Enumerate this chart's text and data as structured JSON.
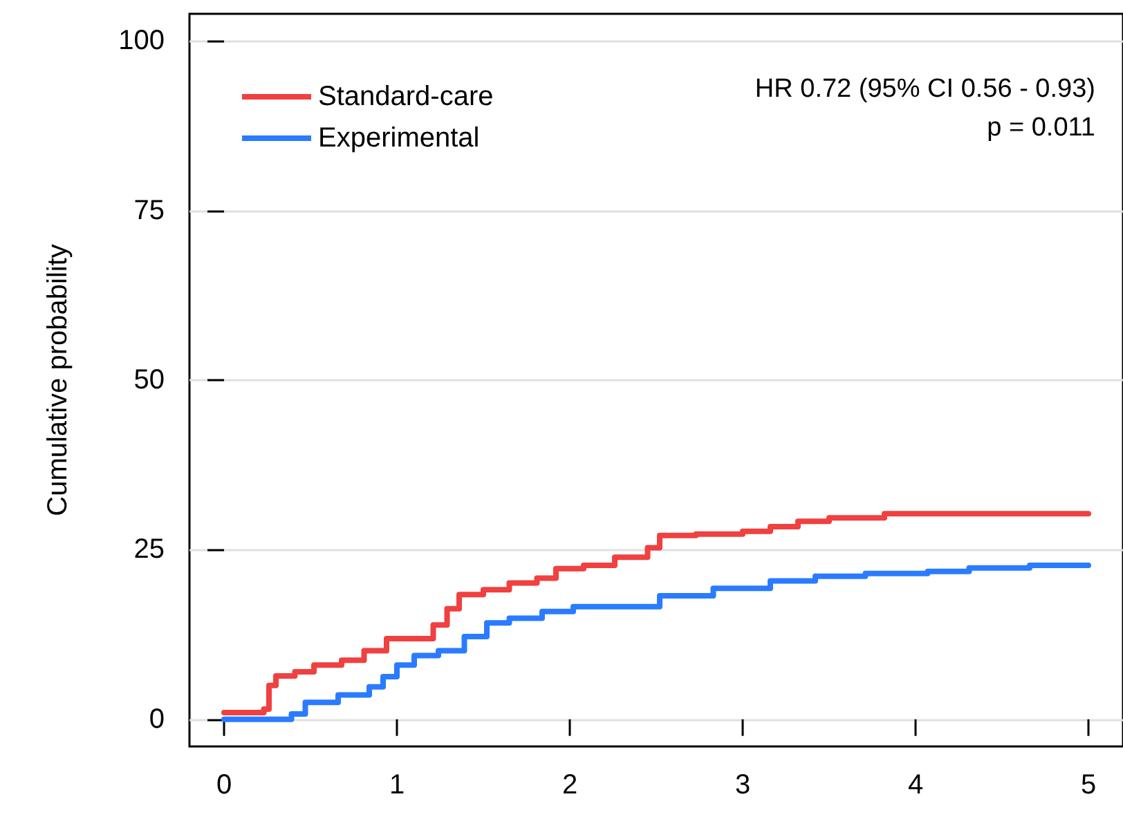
{
  "chart_data": {
    "type": "step",
    "ylabel": "Cumulative probability",
    "annotations": [
      "HR 0.72 (95% CI 0.56 - 0.93)",
      "p = 0.011"
    ],
    "xlim": [
      -0.2,
      5.2
    ],
    "xticks": [
      0,
      1,
      2,
      3,
      4,
      5
    ],
    "ylim": [
      -4,
      104
    ],
    "yticks": [
      0,
      25,
      50,
      75,
      100
    ],
    "grid": "y",
    "legend": "top left",
    "line_style": "solid",
    "series": [
      {
        "name": "Standard-care",
        "color": "#f04040",
        "x": [
          0,
          0.23,
          0.26,
          0.3,
          0.41,
          0.52,
          0.68,
          0.81,
          0.94,
          1.07,
          1.21,
          1.29,
          1.36,
          1.5,
          1.65,
          1.81,
          1.92,
          2.08,
          2.26,
          2.45,
          2.52,
          2.73,
          3.0,
          3.16,
          3.32,
          3.5,
          3.82,
          5.0
        ],
        "values": [
          1.0,
          1.5,
          5.0,
          6.4,
          7.0,
          8.0,
          8.7,
          10.1,
          11.9,
          11.9,
          13.9,
          16.3,
          18.4,
          19.1,
          20.1,
          20.8,
          22.2,
          22.7,
          23.9,
          25.3,
          27.1,
          27.3,
          27.7,
          28.4,
          29.2,
          29.7,
          30.3,
          30.3
        ]
      },
      {
        "name": "Experimental",
        "color": "#2a7bff",
        "x": [
          0,
          0.23,
          0.39,
          0.47,
          0.66,
          0.84,
          0.92,
          1.0,
          1.1,
          1.24,
          1.39,
          1.52,
          1.65,
          1.84,
          2.02,
          2.29,
          2.52,
          2.83,
          3.16,
          3.42,
          3.71,
          4.07,
          4.31,
          4.66,
          5.0
        ],
        "values": [
          0.0,
          0.0,
          0.8,
          2.5,
          3.6,
          4.8,
          6.3,
          8.0,
          9.4,
          10.1,
          12.2,
          14.2,
          14.9,
          15.9,
          16.6,
          16.6,
          18.2,
          19.3,
          20.4,
          21.1,
          21.5,
          21.8,
          22.3,
          22.7,
          22.7
        ]
      }
    ]
  }
}
